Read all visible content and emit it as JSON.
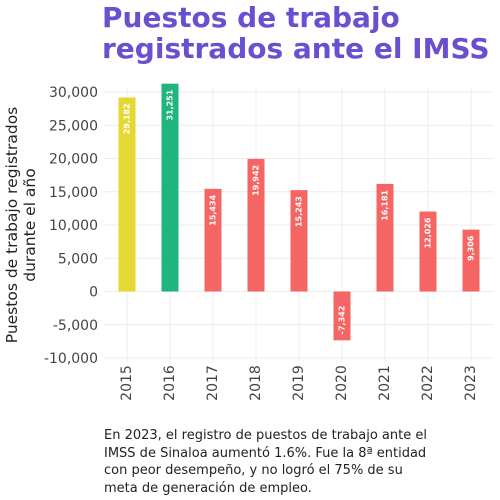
{
  "title": "Puestos de trabajo registrados ante el IMSS",
  "caption": "En 2023, el registro de puestos de trabajo ante el IMSS de Sinaloa aumentó 1.6%. Fue la 8ª entidad con peor desempeño, y no logró el 75% de su meta de generación de empleo.",
  "colors": {
    "title": "#6a4fd0",
    "highlight_2015": "#e4d832",
    "highlight_2016": "#1fb57d",
    "default_bar": "#f46563"
  },
  "chart_data": {
    "type": "bar",
    "categories": [
      "2015",
      "2016",
      "2017",
      "2018",
      "2019",
      "2020",
      "2021",
      "2022",
      "2023"
    ],
    "values": [
      29182,
      31251,
      15434,
      19942,
      15243,
      -7342,
      16181,
      12026,
      9306
    ],
    "value_labels": [
      "29,182",
      "31,251",
      "15,434",
      "19,942",
      "15,243",
      "-7,342",
      "16,181",
      "12,026",
      "9,306"
    ],
    "bar_colors": [
      "#e4d832",
      "#1fb57d",
      "#f46563",
      "#f46563",
      "#f46563",
      "#f46563",
      "#f46563",
      "#f46563",
      "#f46563"
    ],
    "ylabel_lines": [
      "Puestos de trabajo registrados",
      "durante el año"
    ],
    "xlabel": "",
    "ylim": [
      -10000,
      30000
    ],
    "yticks": [
      -10000,
      -5000,
      0,
      5000,
      10000,
      15000,
      20000,
      25000,
      30000
    ],
    "ytick_labels": [
      "-10,000",
      "-5,000",
      "0",
      "5,000",
      "10,000",
      "15,000",
      "20,000",
      "25,000",
      "30,000"
    ],
    "grid": true,
    "legend": "none"
  }
}
